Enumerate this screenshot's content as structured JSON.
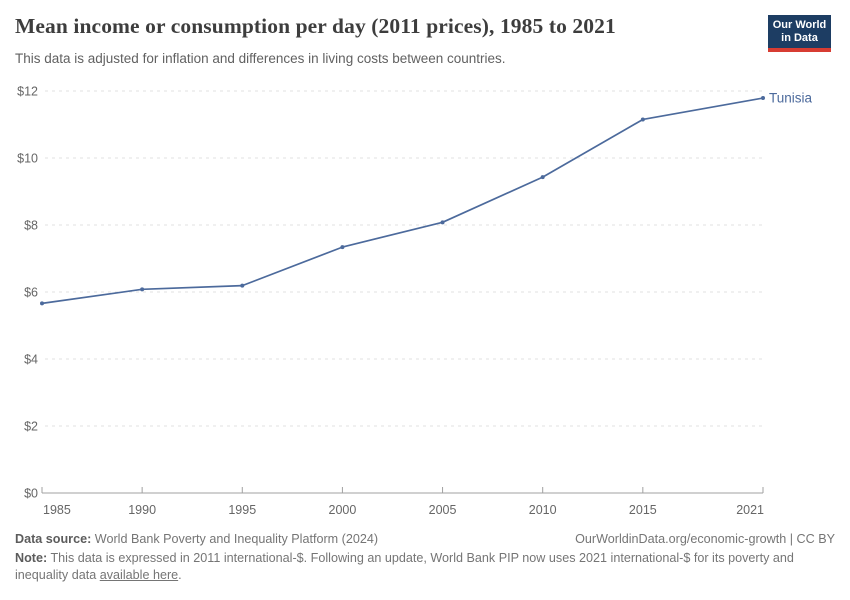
{
  "header": {
    "title": "Mean income or consumption per day (2011 prices), 1985 to 2021",
    "subtitle": "This data is adjusted for inflation and differences in living costs between countries.",
    "logo": {
      "line1": "Our World",
      "line2": "in Data"
    }
  },
  "chart_data": {
    "type": "line",
    "title": "Mean income or consumption per day (2011 prices), 1985 to 2021",
    "x": [
      1985,
      1990,
      1995,
      2000,
      2005,
      2010,
      2015,
      2021
    ],
    "series": [
      {
        "name": "Tunisia",
        "values": [
          5.66,
          6.08,
          6.19,
          7.34,
          8.08,
          9.43,
          11.15,
          11.79
        ],
        "color": "#4c6a9c"
      }
    ],
    "xlabel": "",
    "ylabel": "",
    "xlim": [
      1985,
      2021
    ],
    "ylim": [
      0,
      12
    ],
    "yticks": [
      0,
      2,
      4,
      6,
      8,
      10,
      12
    ],
    "ytick_labels": [
      "$0",
      "$2",
      "$4",
      "$6",
      "$8",
      "$10",
      "$12"
    ],
    "xticks": [
      1985,
      1990,
      1995,
      2000,
      2005,
      2010,
      2015,
      2021
    ],
    "xtick_labels": [
      "1985",
      "1990",
      "1995",
      "2000",
      "2005",
      "2010",
      "2015",
      "2021"
    ],
    "grid": "horizontal-dashed",
    "legend_position": "end-of-line-label",
    "marker": "circle"
  },
  "colors": {
    "line": "#4c6a9c",
    "grid": "#e2e2e2",
    "axis": "#a0a0a0",
    "tick_text": "#666666",
    "title_text": "#3d3d3d",
    "subtitle_text": "#616161",
    "footer_text": "#757575",
    "logo_bg": "#1d3d63",
    "logo_bar": "#d73c32"
  },
  "footer": {
    "source_label": "Data source:",
    "source_text": " World Bank Poverty and Inequality Platform (2024)",
    "attribution": "OurWorldinData.org/economic-growth | CC BY",
    "note_label": "Note:",
    "note_before_link": " This data is expressed in 2011 international-$. Following an update, World Bank PIP now uses 2021 international-$ for its poverty and inequality data ",
    "note_link": "available here",
    "note_after_link": "."
  }
}
